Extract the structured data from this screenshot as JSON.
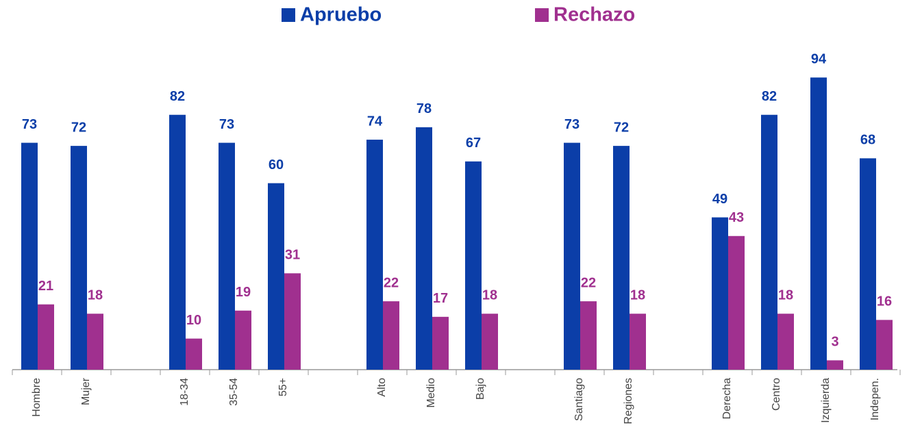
{
  "chart_data": {
    "type": "bar",
    "categories": [
      "Hombre",
      "Mujer",
      null,
      "18-34",
      "35-54",
      "55+",
      null,
      "Alto",
      "Medio",
      "Bajo",
      null,
      "Santiago",
      "Regiones",
      null,
      "Derecha",
      "Centro",
      "Izquierda",
      "Indepen."
    ],
    "series": [
      {
        "name": "Apruebo",
        "color": "#0b3ea8",
        "values": [
          73,
          72,
          null,
          82,
          73,
          60,
          null,
          74,
          78,
          67,
          null,
          73,
          72,
          null,
          49,
          82,
          94,
          68
        ]
      },
      {
        "name": "Rechazo",
        "color": "#a0308f",
        "values": [
          21,
          18,
          null,
          10,
          19,
          31,
          null,
          22,
          17,
          18,
          null,
          22,
          18,
          null,
          43,
          18,
          3,
          16
        ]
      }
    ],
    "ylim": [
      0,
      100
    ],
    "legend": "top"
  }
}
